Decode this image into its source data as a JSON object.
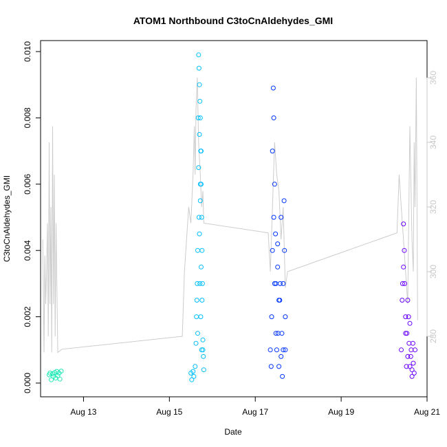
{
  "chart_data": {
    "type": "scatter",
    "title": "ATOM1 Northbound C3toCnAldehydes_GMI",
    "xlabel": "Date",
    "ylabel": "C3toCnAldehydes_GMI",
    "x_ticks": [
      "Aug 13",
      "Aug 15",
      "Aug 17",
      "Aug 19",
      "Aug 21"
    ],
    "x_tick_days": [
      13,
      15,
      17,
      19,
      21
    ],
    "xlim": [
      12.0,
      21.0
    ],
    "ylim": [
      0.0,
      0.01
    ],
    "y_ticks": [
      "0.000",
      "0.002",
      "0.004",
      "0.006",
      "0.008",
      "0.010"
    ],
    "y_tick_values": [
      0.0,
      0.002,
      0.004,
      0.006,
      0.008,
      0.01
    ],
    "y2lim": [
      263,
      368
    ],
    "y2_ticks": [
      "280",
      "300",
      "320",
      "340",
      "360"
    ],
    "y2_tick_values": [
      280,
      300,
      320,
      340,
      360
    ],
    "grid": false,
    "legend": "none",
    "colors": {
      "secondary_line": "#cccccc",
      "secondary_axis": "#c8c8c8",
      "series": [
        "#1de9b6",
        "#00bfff",
        "#0033ff",
        "#6a00ff"
      ]
    },
    "series": [
      {
        "color": "#1de9b6",
        "x": [
          12.2,
          12.22,
          12.25,
          12.28,
          12.3,
          12.33,
          12.35,
          12.38,
          12.4,
          12.43,
          12.45,
          12.48
        ],
        "y": [
          0.00025,
          0.0003,
          0.0001,
          0.00028,
          0.0002,
          0.00032,
          0.00015,
          0.00035,
          0.00022,
          0.0003,
          0.00012,
          0.00036
        ]
      },
      {
        "color": "#00bfff",
        "x": [
          15.5,
          15.52,
          15.55,
          15.57,
          15.6,
          15.62,
          15.63,
          15.64,
          15.65,
          15.66,
          15.67,
          15.68,
          15.69,
          15.7,
          15.71,
          15.72,
          15.73,
          15.74,
          15.75,
          15.76,
          15.77,
          15.78,
          15.79,
          15.8,
          15.66,
          15.68,
          15.7,
          15.72,
          15.74,
          15.76,
          15.78,
          15.7,
          15.72,
          15.74,
          15.69,
          15.71,
          15.73,
          15.75
        ],
        "y": [
          0.0003,
          0.0001,
          0.00035,
          0.0002,
          0.0005,
          0.0012,
          0.002,
          0.0025,
          0.003,
          0.004,
          0.008,
          0.0099,
          0.0095,
          0.009,
          0.0085,
          0.008,
          0.007,
          0.006,
          0.005,
          0.004,
          0.003,
          0.0013,
          0.0008,
          0.0004,
          0.0015,
          0.0065,
          0.0075,
          0.0055,
          0.0035,
          0.0025,
          0.001,
          0.0045,
          0.006,
          0.007,
          0.005,
          0.003,
          0.002,
          0.001
        ]
      },
      {
        "color": "#0033ff",
        "x": [
          17.35,
          17.37,
          17.38,
          17.4,
          17.42,
          17.43,
          17.45,
          17.47,
          17.48,
          17.5,
          17.52,
          17.53,
          17.55,
          17.57,
          17.58,
          17.6,
          17.62,
          17.63,
          17.65,
          17.67,
          17.68,
          17.7,
          17.4,
          17.43,
          17.45,
          17.48,
          17.52,
          17.55,
          17.6,
          17.65,
          17.7
        ],
        "y": [
          0.001,
          0.0005,
          0.002,
          0.004,
          0.0089,
          0.008,
          0.006,
          0.0045,
          0.003,
          0.001,
          0.0035,
          0.0015,
          0.0005,
          0.0025,
          0.003,
          0.005,
          0.0015,
          0.0002,
          0.001,
          0.0055,
          0.004,
          0.002,
          0.007,
          0.005,
          0.003,
          0.0015,
          0.0042,
          0.0025,
          0.0008,
          0.003,
          0.001
        ]
      },
      {
        "color": "#6a00ff",
        "x": [
          20.4,
          20.42,
          20.43,
          20.45,
          20.47,
          20.48,
          20.5,
          20.52,
          20.53,
          20.55,
          20.57,
          20.58,
          20.6,
          20.62,
          20.63,
          20.65,
          20.67,
          20.68,
          20.7,
          20.72,
          20.45,
          20.5,
          20.55,
          20.6,
          20.65
        ],
        "y": [
          0.001,
          0.0025,
          0.003,
          0.0048,
          0.004,
          0.003,
          0.002,
          0.0005,
          0.0015,
          0.0025,
          0.002,
          0.0012,
          0.0005,
          0.0008,
          0.001,
          0.0002,
          0.0012,
          0.0006,
          0.0003,
          0.001,
          0.0035,
          0.0015,
          0.0008,
          0.0018,
          0.0004
        ]
      }
    ],
    "secondary_line": {
      "color": "#cccccc",
      "x": [
        12.05,
        12.08,
        12.1,
        12.12,
        12.14,
        12.16,
        12.18,
        12.2,
        12.22,
        12.24,
        12.26,
        12.28,
        12.3,
        12.32,
        12.34,
        12.36,
        12.4,
        12.5,
        15.3,
        15.35,
        15.4,
        15.45,
        15.5,
        15.55,
        15.58,
        15.6,
        15.62,
        15.65,
        15.68,
        15.7,
        15.72,
        15.75,
        15.78,
        15.8,
        17.3,
        17.35,
        17.4,
        17.45,
        17.5,
        17.55,
        17.6,
        17.65,
        17.7,
        17.75,
        20.3,
        20.35,
        20.4,
        20.45,
        20.5,
        20.55,
        20.6,
        20.62,
        20.65,
        20.68,
        20.7,
        20.72,
        20.75,
        20.78
      ],
      "y": [
        310,
        275,
        305,
        290,
        300,
        315,
        280,
        340,
        290,
        320,
        275,
        345,
        290,
        330,
        280,
        315,
        275,
        276,
        280,
        300,
        310,
        320,
        315,
        330,
        345,
        330,
        350,
        360,
        340,
        335,
        330,
        320,
        325,
        315,
        312,
        300,
        320,
        340,
        330,
        325,
        310,
        320,
        295,
        300,
        312,
        330,
        320,
        310,
        300,
        290,
        345,
        330,
        310,
        300,
        340,
        320,
        360,
        285
      ]
    }
  }
}
